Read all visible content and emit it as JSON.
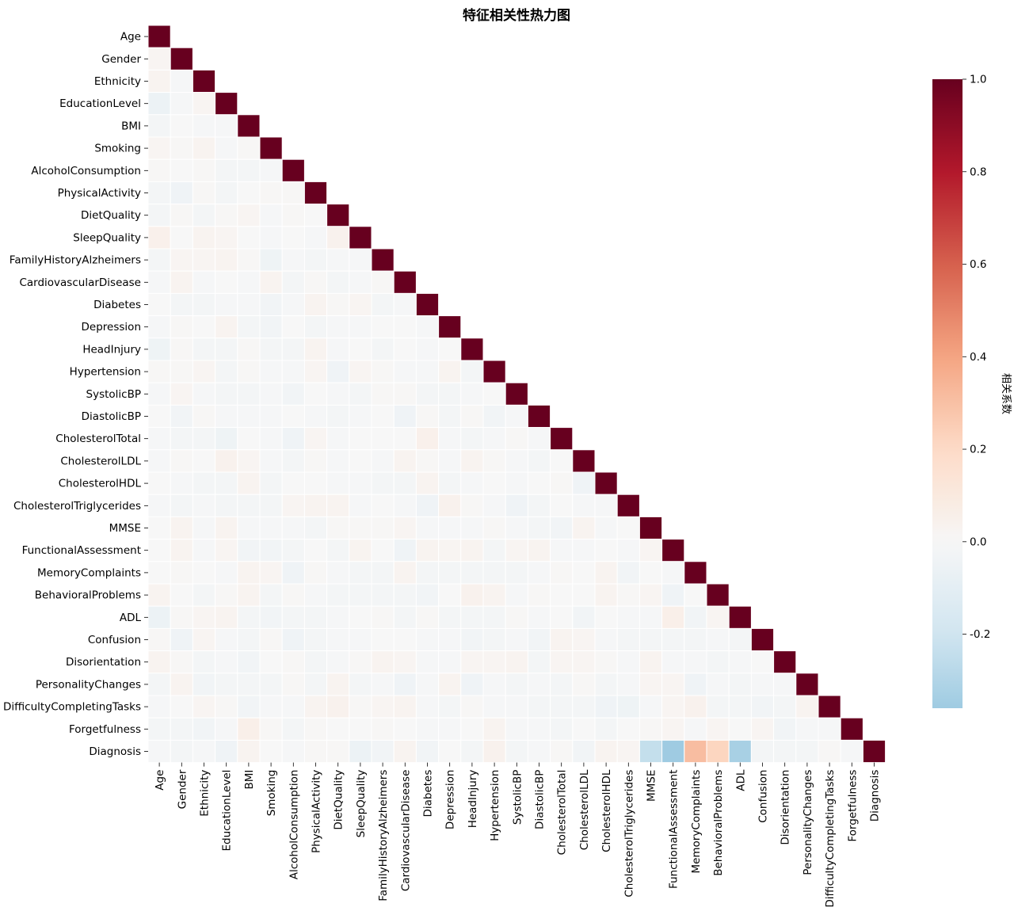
{
  "chart_data": {
    "type": "heatmap",
    "title": "特征相关性热力图",
    "mask": "upper-triangle",
    "variables": [
      "Age",
      "Gender",
      "Ethnicity",
      "EducationLevel",
      "BMI",
      "Smoking",
      "AlcoholConsumption",
      "PhysicalActivity",
      "DietQuality",
      "SleepQuality",
      "FamilyHistoryAlzheimers",
      "CardiovascularDisease",
      "Diabetes",
      "Depression",
      "HeadInjury",
      "Hypertension",
      "SystolicBP",
      "DiastolicBP",
      "CholesterolTotal",
      "CholesterolLDL",
      "CholesterolHDL",
      "CholesterolTriglycerides",
      "MMSE",
      "FunctionalAssessment",
      "MemoryComplaints",
      "BehavioralProblems",
      "ADL",
      "Confusion",
      "Disorientation",
      "PersonalityChanges",
      "DifficultyCompletingTasks",
      "Forgetfulness",
      "Diagnosis"
    ],
    "lower_triangle_values": [
      [],
      [
        0.02
      ],
      [
        0.03,
        -0.01
      ],
      [
        -0.06,
        -0.01,
        0.02
      ],
      [
        -0.02,
        0.0,
        -0.01,
        -0.01
      ],
      [
        0.02,
        0.01,
        0.03,
        -0.01,
        0.01
      ],
      [
        0.01,
        0.0,
        0.01,
        -0.02,
        -0.02,
        -0.01
      ],
      [
        -0.02,
        -0.04,
        0.01,
        -0.02,
        0.0,
        0.01,
        0.01
      ],
      [
        -0.02,
        0.01,
        -0.02,
        0.01,
        0.02,
        -0.01,
        0.01,
        0.0
      ],
      [
        0.05,
        0.0,
        0.03,
        0.02,
        0.0,
        -0.01,
        0.0,
        -0.01,
        0.04
      ],
      [
        -0.02,
        0.02,
        0.02,
        0.03,
        0.01,
        -0.05,
        -0.01,
        -0.02,
        -0.01,
        -0.01
      ],
      [
        -0.01,
        0.03,
        -0.01,
        0.0,
        -0.01,
        0.03,
        -0.02,
        0.01,
        -0.02,
        -0.01,
        0.01
      ],
      [
        0.0,
        -0.02,
        -0.02,
        -0.01,
        -0.01,
        -0.03,
        -0.01,
        0.03,
        0.01,
        0.02,
        -0.02,
        -0.01
      ],
      [
        -0.01,
        0.01,
        0.0,
        0.03,
        -0.02,
        -0.03,
        0.0,
        -0.02,
        -0.01,
        -0.01,
        0.0,
        0.0,
        -0.01
      ],
      [
        -0.05,
        0.01,
        -0.02,
        -0.02,
        0.01,
        -0.02,
        -0.02,
        0.03,
        -0.01,
        0.0,
        -0.02,
        0.0,
        -0.01,
        0.0
      ],
      [
        0.01,
        0.01,
        0.02,
        -0.02,
        0.01,
        -0.01,
        -0.01,
        0.02,
        -0.04,
        0.02,
        0.01,
        -0.01,
        -0.01,
        0.03,
        -0.02
      ],
      [
        -0.01,
        0.02,
        -0.01,
        -0.02,
        -0.02,
        -0.01,
        -0.03,
        0.0,
        -0.01,
        -0.02,
        0.01,
        0.01,
        -0.02,
        -0.02,
        -0.01,
        0.0
      ],
      [
        0.0,
        -0.03,
        0.01,
        -0.01,
        -0.01,
        -0.01,
        0.0,
        -0.01,
        -0.02,
        -0.01,
        0.0,
        -0.04,
        0.01,
        -0.02,
        0.01,
        -0.03,
        -0.01
      ],
      [
        -0.01,
        -0.02,
        -0.02,
        -0.05,
        0.0,
        -0.01,
        -0.04,
        0.02,
        -0.01,
        0.0,
        0.0,
        0.0,
        0.05,
        -0.01,
        -0.02,
        -0.01,
        0.01,
        -0.01
      ],
      [
        -0.01,
        0.01,
        0.0,
        0.04,
        0.02,
        -0.01,
        -0.02,
        0.01,
        -0.01,
        0.0,
        -0.01,
        0.03,
        0.01,
        -0.01,
        0.03,
        0.01,
        -0.01,
        -0.02,
        0.0
      ],
      [
        0.0,
        -0.01,
        -0.02,
        -0.02,
        0.03,
        -0.02,
        0.0,
        0.0,
        -0.01,
        -0.01,
        -0.02,
        -0.02,
        0.03,
        -0.02,
        -0.01,
        0.0,
        -0.01,
        0.0,
        0.01,
        -0.04
      ],
      [
        -0.01,
        -0.02,
        -0.01,
        -0.02,
        -0.02,
        -0.02,
        0.02,
        0.03,
        0.03,
        -0.01,
        0.0,
        -0.01,
        -0.04,
        0.04,
        0.01,
        -0.01,
        -0.04,
        -0.02,
        0.0,
        -0.01,
        -0.01
      ],
      [
        0.0,
        0.03,
        -0.01,
        0.03,
        -0.01,
        -0.01,
        -0.01,
        -0.02,
        0.01,
        0.01,
        0.01,
        0.02,
        -0.01,
        -0.01,
        -0.01,
        0.01,
        -0.01,
        -0.02,
        -0.03,
        0.03,
        -0.01,
        0.0
      ],
      [
        0.0,
        0.03,
        -0.01,
        0.02,
        -0.03,
        -0.03,
        -0.02,
        0.0,
        -0.02,
        0.03,
        0.0,
        -0.04,
        0.03,
        0.02,
        0.03,
        -0.02,
        0.02,
        0.03,
        -0.01,
        -0.01,
        0.0,
        -0.01,
        0.02
      ],
      [
        0.0,
        0.01,
        0.0,
        -0.01,
        0.03,
        0.02,
        -0.04,
        0.01,
        -0.01,
        -0.02,
        -0.02,
        0.03,
        -0.02,
        -0.02,
        -0.02,
        -0.02,
        -0.02,
        -0.01,
        0.01,
        0.0,
        0.03,
        -0.03,
        0.0,
        -0.01
      ],
      [
        0.03,
        0.0,
        -0.02,
        0.01,
        0.03,
        -0.02,
        0.01,
        -0.01,
        -0.02,
        -0.02,
        -0.02,
        -0.02,
        -0.03,
        0.0,
        0.04,
        0.03,
        -0.01,
        0.01,
        0.0,
        0.0,
        0.03,
        0.01,
        0.02,
        -0.04,
        0.0
      ],
      [
        -0.06,
        0.01,
        0.02,
        0.03,
        -0.02,
        -0.03,
        -0.02,
        -0.02,
        -0.01,
        0.0,
        0.01,
        -0.02,
        0.01,
        -0.02,
        -0.02,
        -0.02,
        0.01,
        -0.01,
        0.0,
        -0.03,
        0.0,
        -0.01,
        -0.01,
        0.06,
        -0.03,
        0.02
      ],
      [
        0.01,
        -0.04,
        0.02,
        -0.01,
        -0.02,
        0.01,
        -0.04,
        -0.02,
        -0.01,
        -0.01,
        0.0,
        0.0,
        -0.01,
        -0.01,
        -0.03,
        -0.02,
        -0.01,
        -0.03,
        0.03,
        0.02,
        -0.01,
        -0.02,
        -0.02,
        -0.02,
        -0.02,
        -0.01,
        -0.02
      ],
      [
        0.03,
        0.01,
        -0.02,
        -0.01,
        -0.03,
        0.0,
        0.01,
        -0.02,
        -0.01,
        0.01,
        0.03,
        0.02,
        -0.01,
        -0.01,
        0.02,
        0.02,
        0.03,
        -0.02,
        0.02,
        0.02,
        0.01,
        -0.01,
        0.03,
        -0.01,
        -0.01,
        -0.02,
        -0.01,
        0.0
      ],
      [
        -0.02,
        0.03,
        -0.03,
        -0.02,
        -0.02,
        -0.02,
        0.01,
        -0.02,
        0.03,
        -0.02,
        -0.01,
        -0.04,
        -0.01,
        0.03,
        -0.04,
        -0.01,
        -0.02,
        -0.01,
        -0.02,
        0.01,
        -0.02,
        -0.01,
        0.02,
        0.02,
        -0.04,
        -0.01,
        -0.02,
        -0.01,
        -0.01
      ],
      [
        -0.01,
        0.0,
        0.02,
        0.01,
        -0.03,
        -0.01,
        -0.01,
        0.03,
        0.04,
        0.01,
        0.02,
        0.03,
        -0.01,
        -0.02,
        0.01,
        -0.01,
        -0.01,
        -0.02,
        -0.02,
        -0.02,
        -0.04,
        -0.05,
        -0.01,
        0.02,
        0.04,
        -0.02,
        -0.02,
        -0.03,
        -0.02,
        0.03
      ],
      [
        -0.02,
        -0.02,
        -0.03,
        -0.01,
        0.06,
        0.01,
        -0.02,
        0.01,
        0.0,
        0.0,
        0.01,
        0.0,
        -0.01,
        -0.01,
        0.0,
        0.03,
        -0.01,
        -0.01,
        -0.02,
        0.0,
        -0.02,
        0.0,
        0.01,
        0.02,
        -0.01,
        0.02,
        0.0,
        0.02,
        -0.03,
        -0.01,
        -0.01
      ],
      [
        -0.01,
        -0.02,
        -0.01,
        -0.04,
        0.03,
        0.0,
        -0.01,
        0.01,
        0.01,
        -0.06,
        -0.03,
        0.03,
        -0.03,
        0.0,
        -0.02,
        0.04,
        -0.02,
        -0.01,
        0.01,
        -0.03,
        0.03,
        0.02,
        -0.24,
        -0.36,
        0.31,
        0.22,
        -0.33,
        -0.02,
        -0.02,
        -0.02,
        0.01,
        -0.01
      ]
    ],
    "diagonal_value": 1.0,
    "colorbar": {
      "label": "相关系数",
      "min": -0.36,
      "max": 1.0,
      "ticks": [
        "1.0",
        "0.8",
        "0.6",
        "0.4",
        "0.2",
        "0.0",
        "-0.2"
      ],
      "tick_values": [
        1.0,
        0.8,
        0.6,
        0.4,
        0.2,
        0.0,
        -0.2
      ],
      "colormap": "RdBu_r (diverging, centered at 0)"
    },
    "grid": false,
    "legend": "none"
  }
}
